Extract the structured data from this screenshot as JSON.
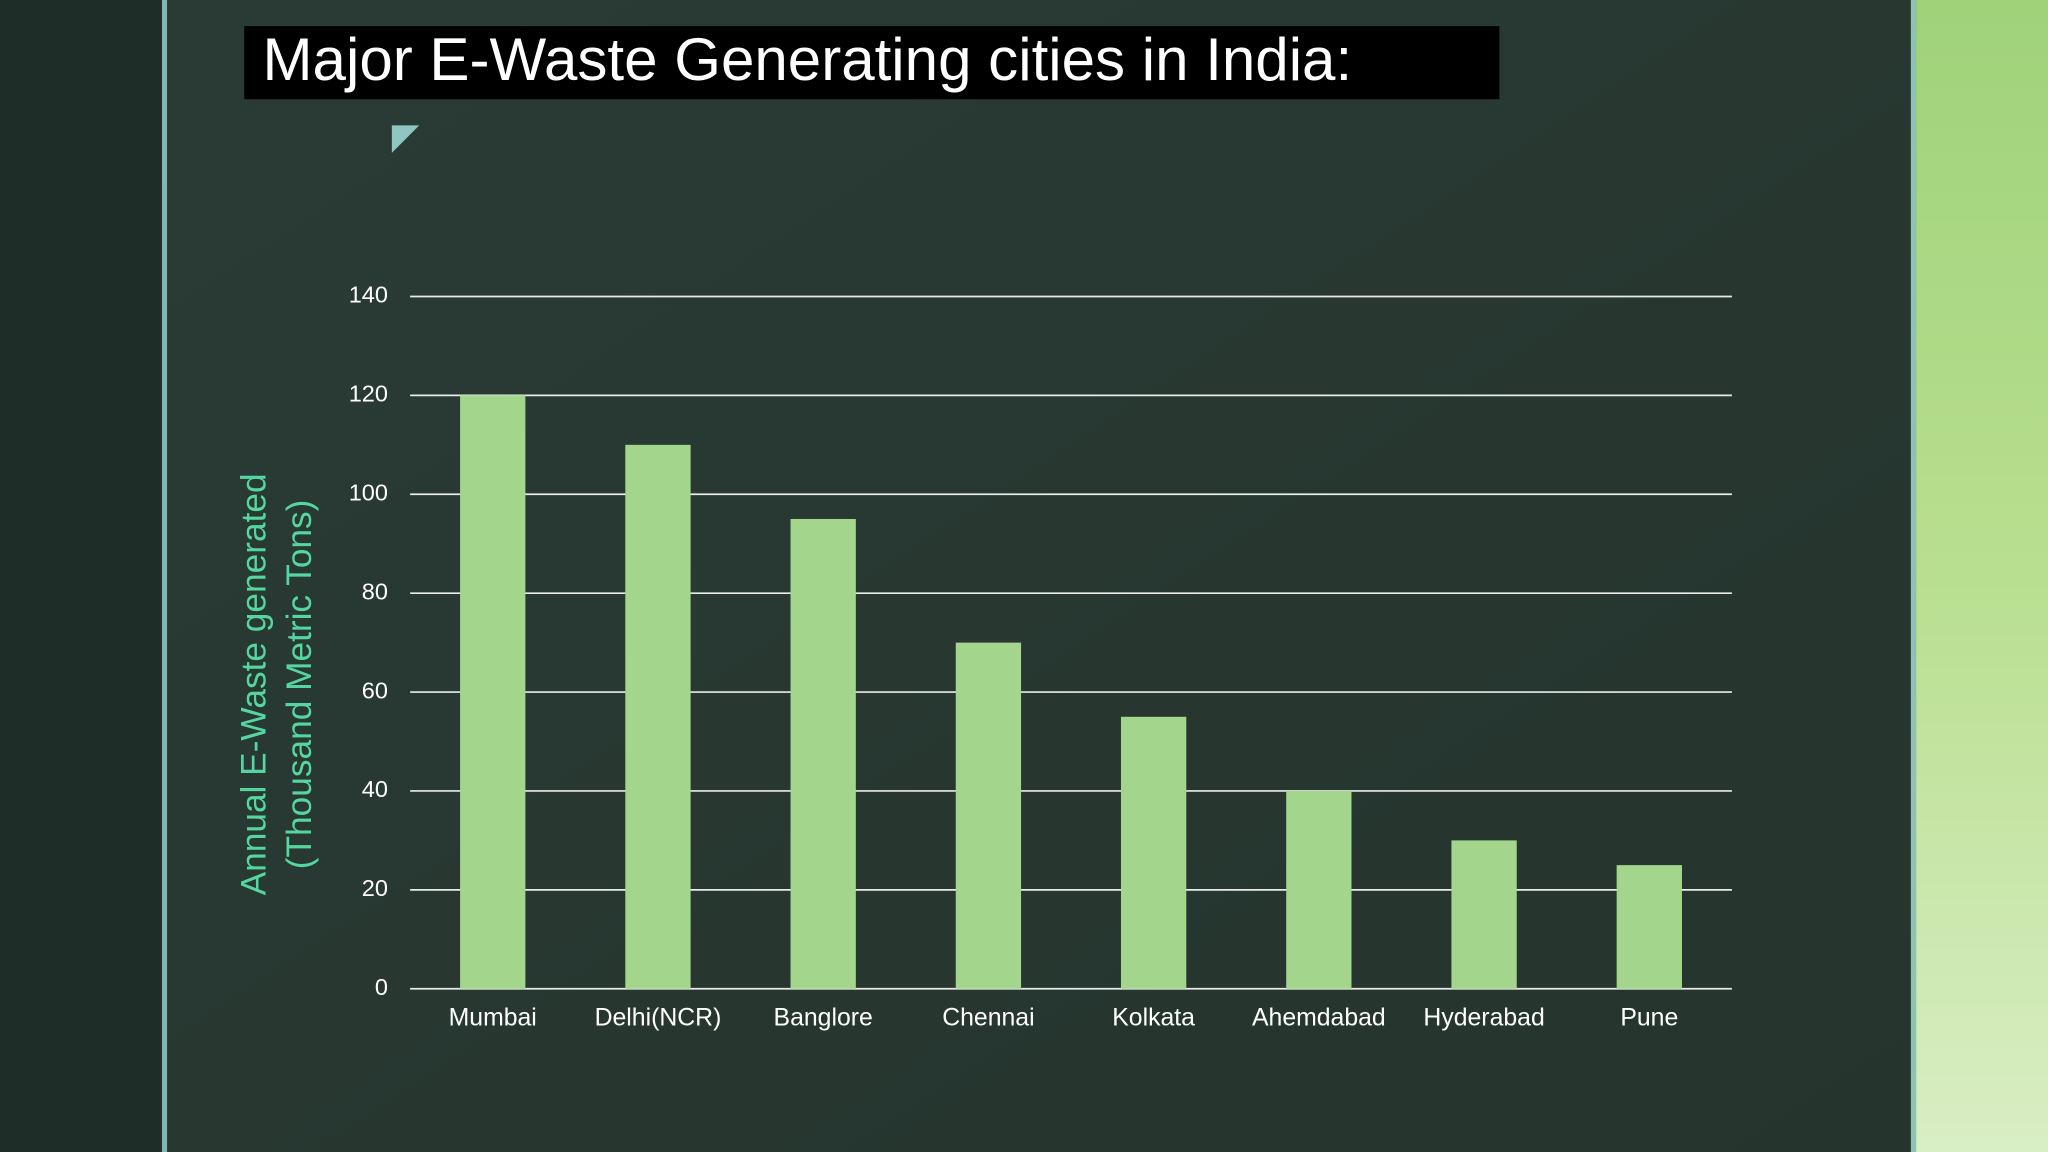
{
  "chart_data": {
    "type": "bar",
    "title": "Major E-Waste Generating cities in India:",
    "y_label": [
      "Annual E-Waste generated",
      "(Thousand Metric Tons)"
    ],
    "categories": [
      "Mumbai",
      "Delhi(NCR)",
      "Banglore",
      "Chennai",
      "Kolkata",
      "Ahemdabad",
      "Hyderabad",
      "Pune"
    ],
    "values": [
      120,
      110,
      95,
      70,
      55,
      40,
      30,
      25
    ],
    "color": "#a3d68c",
    "ylim": [
      0,
      140
    ],
    "yticks": [
      0,
      20,
      40,
      60,
      80,
      100,
      120,
      140
    ],
    "grid": true
  }
}
